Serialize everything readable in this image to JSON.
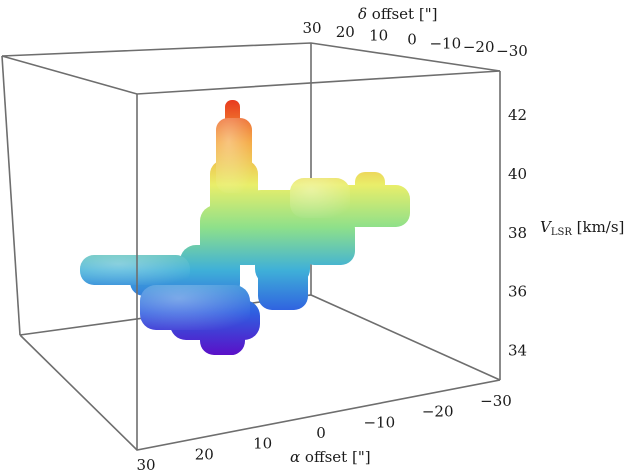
{
  "chart_data": {
    "type": "3d-isosurface",
    "title": "",
    "axes": {
      "alpha": {
        "title_symbol": "α",
        "title_text": " offset [\"]",
        "ticks": [
          30,
          20,
          10,
          0,
          -10,
          -20,
          -30
        ],
        "tick_labels": [
          "30",
          "20",
          "10",
          "0",
          "−10",
          "−20",
          "−30"
        ],
        "range": [
          30,
          -30
        ]
      },
      "delta": {
        "title_symbol": "δ",
        "title_text": " offset [\"]",
        "ticks": [
          30,
          20,
          10,
          0,
          -10,
          -20,
          -30
        ],
        "tick_labels": [
          "30",
          "20",
          "10",
          "0",
          "−10",
          "−20",
          "−30"
        ],
        "range": [
          30,
          -30
        ]
      },
      "velocity": {
        "title_symbol": "V",
        "title_sub": "LSR",
        "title_text": " [km/s]",
        "ticks": [
          34,
          36,
          38,
          40,
          42
        ],
        "tick_labels": [
          "34",
          "36",
          "38",
          "40",
          "42"
        ],
        "range": [
          33,
          43.5
        ]
      }
    },
    "color_scale": {
      "by": "velocity",
      "stops": [
        "#5a10c8",
        "#2f5fe0",
        "#3fb0d8",
        "#8ee08a",
        "#e9ee6a",
        "#f4a53a",
        "#e83a1e"
      ]
    },
    "grid": false,
    "legend": "none"
  }
}
